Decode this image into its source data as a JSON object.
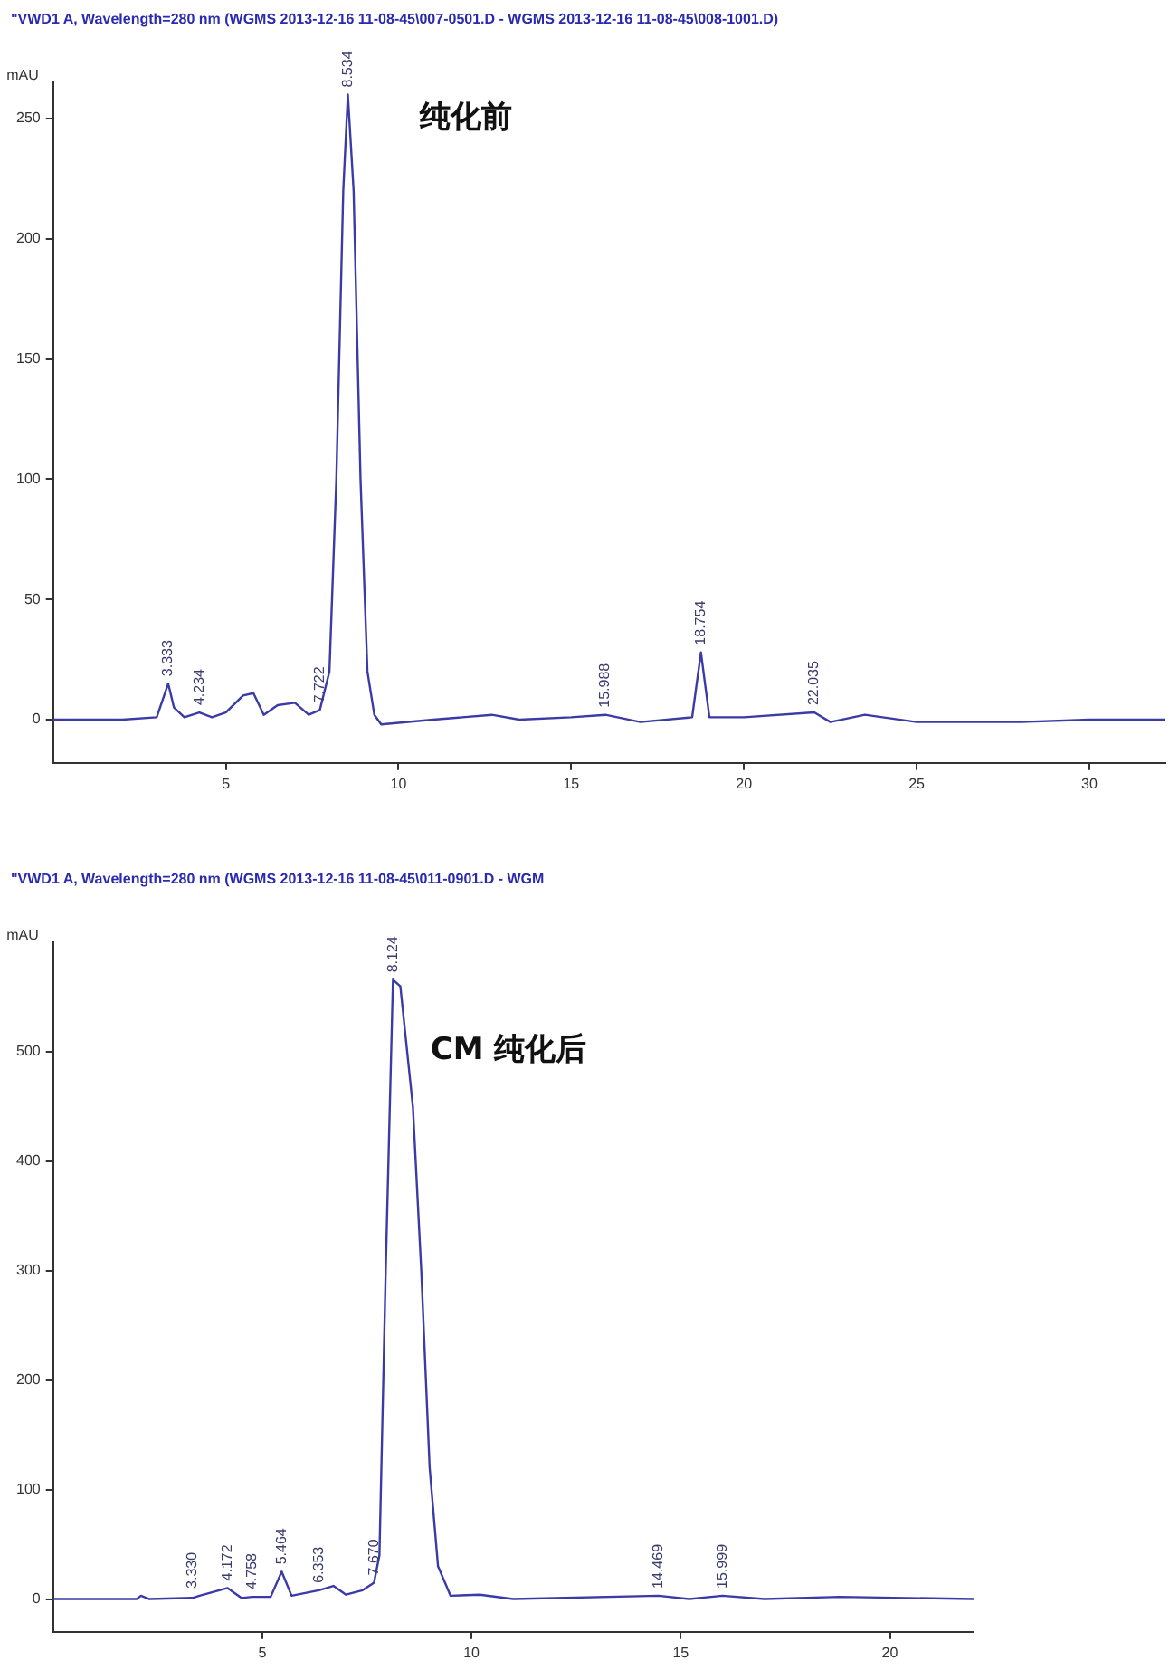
{
  "chart_data": [
    {
      "type": "line",
      "title": "\"VWD1 A, Wavelength=280 nm (WGMS 2013-12-16 11-08-45\\007-0501.D - WGMS 2013-12-16 11-08-45\\008-1001.D)",
      "ylabel": "mAU",
      "annotations": [
        "纯化前",
        {
          "text": "3.333",
          "x": 3.333,
          "y": 15
        },
        {
          "text": "4.234",
          "x": 4.234,
          "y": 3
        },
        {
          "text": "7.722",
          "x": 7.722,
          "y": 4
        },
        {
          "text": "8.534",
          "x": 8.534,
          "y": 260
        },
        {
          "text": "15.988",
          "x": 15.988,
          "y": 2
        },
        {
          "text": "18.754",
          "x": 18.754,
          "y": 28
        },
        {
          "text": "22.035",
          "x": 22.035,
          "y": 3
        }
      ],
      "series": [
        {
          "color": "#3b3ba8",
          "x": [
            0,
            2,
            3.0,
            3.333,
            3.5,
            3.8,
            4.234,
            4.6,
            5.0,
            5.5,
            5.8,
            6.1,
            6.5,
            7.0,
            7.4,
            7.722,
            8.0,
            8.2,
            8.4,
            8.534,
            8.7,
            8.9,
            9.1,
            9.3,
            9.5,
            11,
            12.7,
            13.5,
            15,
            15.988,
            17,
            18.5,
            18.754,
            19.0,
            20,
            22.035,
            22.5,
            23.5,
            25,
            28,
            30,
            32.2
          ],
          "values": [
            0,
            0,
            1,
            15,
            5,
            1,
            3,
            1,
            3,
            10,
            11,
            2,
            6,
            7,
            2,
            4,
            20,
            100,
            220,
            260,
            220,
            100,
            20,
            2,
            -2,
            0,
            2,
            0,
            1,
            2,
            -1,
            1,
            28,
            1,
            1,
            3,
            -1,
            2,
            -1,
            -1,
            0,
            0
          ]
        }
      ],
      "xlim": [
        0,
        32.2
      ],
      "xticks": [
        5,
        10,
        15,
        20,
        25,
        30
      ],
      "ylim": [
        -18,
        265
      ],
      "yticks": [
        0,
        50,
        100,
        150,
        200,
        250
      ],
      "grid": false,
      "legend": false,
      "marker": "none"
    },
    {
      "type": "line",
      "title": "\"VWD1 A, Wavelength=280 nm (WGMS 2013-12-16 11-08-45\\011-0901.D - WGM",
      "ylabel": "mAU",
      "annotations": [
        "CM 纯化后",
        {
          "text": "3.330",
          "x": 3.33,
          "y": 3
        },
        {
          "text": "4.172",
          "x": 4.172,
          "y": 10
        },
        {
          "text": "4.758",
          "x": 4.758,
          "y": 2
        },
        {
          "text": "5.464",
          "x": 5.464,
          "y": 25
        },
        {
          "text": "6.353",
          "x": 6.353,
          "y": 8
        },
        {
          "text": "7.670",
          "x": 7.67,
          "y": 15
        },
        {
          "text": "8.124",
          "x": 8.124,
          "y": 566
        },
        {
          "text": "14.469",
          "x": 14.469,
          "y": 3
        },
        {
          "text": "15.999",
          "x": 15.999,
          "y": 3
        }
      ],
      "series": [
        {
          "color": "#3b3ba8",
          "x": [
            0,
            2,
            2.1,
            2.3,
            3.33,
            3.5,
            4.172,
            4.5,
            4.758,
            5.2,
            5.464,
            5.7,
            6.353,
            6.7,
            7.0,
            7.4,
            7.67,
            7.8,
            7.95,
            8.124,
            8.3,
            8.6,
            8.8,
            9.0,
            9.2,
            9.5,
            10.2,
            11,
            14.469,
            15.2,
            15.999,
            17,
            18.8,
            22
          ],
          "values": [
            0,
            0,
            3,
            0,
            1,
            3,
            10,
            1,
            2,
            2,
            25,
            3,
            8,
            12,
            4,
            8,
            15,
            40,
            300,
            566,
            560,
            450,
            300,
            120,
            30,
            3,
            4,
            0,
            3,
            0,
            3,
            0,
            2,
            0
          ]
        }
      ],
      "xlim": [
        0,
        22
      ],
      "xticks": [
        5,
        10,
        15,
        20
      ],
      "ylim": [
        -30,
        600
      ],
      "yticks": [
        0,
        100,
        200,
        300,
        400,
        500
      ],
      "grid": false,
      "legend": false,
      "marker": "none"
    }
  ]
}
